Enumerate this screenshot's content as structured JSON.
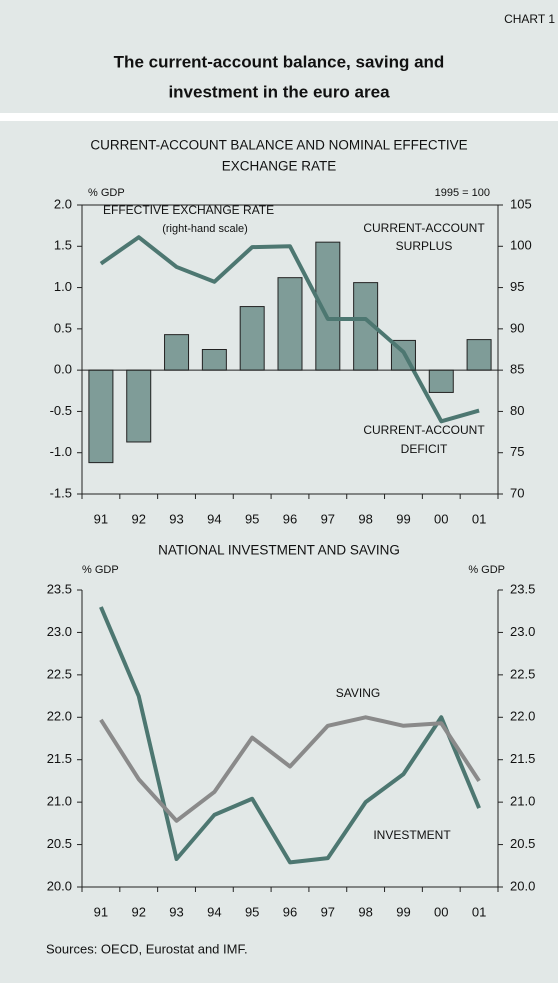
{
  "header": {
    "label": "CHART 1",
    "title_lines": [
      "The current-account balance, saving and",
      "investment in the euro area"
    ]
  },
  "chart_data": [
    {
      "type": "bar_line",
      "title_lines": [
        "CURRENT-ACCOUNT BALANCE AND NOMINAL EFFECTIVE",
        "EXCHANGE RATE"
      ],
      "y_label": "% GDP",
      "y2_label": "1995 = 100",
      "categories": [
        "91",
        "92",
        "93",
        "94",
        "95",
        "96",
        "97",
        "98",
        "99",
        "00",
        "01"
      ],
      "series": [
        {
          "type": "bar",
          "color": "#7f9c98",
          "values": [
            -1.12,
            -0.87,
            0.43,
            0.25,
            0.77,
            1.12,
            1.55,
            1.06,
            0.36,
            -0.27,
            0.37
          ]
        },
        {
          "type": "line",
          "axis": "y2",
          "color": "#4d7771",
          "values": [
            97.9,
            101.1,
            97.5,
            95.7,
            99.9,
            100.0,
            91.2,
            91.2,
            87.2,
            78.8,
            80.1
          ]
        }
      ],
      "annotations": [
        "EFFECTIVE EXCHANGE RATE",
        "(right-hand scale)",
        "CURRENT-ACCOUNT",
        "SURPLUS",
        "CURRENT-ACCOUNT",
        "DEFICIT"
      ],
      "ylim": [
        -1.5,
        2
      ],
      "yticks": [
        {
          "value": 2,
          "label": "2.0"
        },
        1.5,
        {
          "value": 1,
          "label": "1.0"
        },
        0.5,
        {
          "value": 0,
          "label": "0.0"
        },
        -0.5,
        {
          "value": -1,
          "label": "-1.0"
        },
        -1.5
      ],
      "y2lim": [
        70,
        105
      ],
      "y2ticks": [
        105,
        100,
        95,
        90,
        85,
        80,
        75,
        70
      ],
      "box": true
    },
    {
      "type": "line",
      "title_lines": [
        "NATIONAL INVESTMENT AND SAVING"
      ],
      "y_label": "% GDP",
      "y2_label": "% GDP",
      "categories": [
        "91",
        "92",
        "93",
        "94",
        "95",
        "96",
        "97",
        "98",
        "99",
        "00",
        "01"
      ],
      "series": [
        {
          "name": "INVESTMENT",
          "color": "#4d7771",
          "values": [
            23.3,
            22.25,
            20.33,
            20.85,
            21.04,
            20.29,
            20.34,
            21.0,
            21.33,
            22.0,
            20.93
          ]
        },
        {
          "name": "SAVING",
          "color": "#8a8a8a",
          "values": [
            21.97,
            21.27,
            20.78,
            21.12,
            21.76,
            21.42,
            21.9,
            22.0,
            21.9,
            21.93,
            21.25
          ]
        }
      ],
      "ylim": [
        20,
        23.5
      ],
      "yticks": [
        23.5,
        {
          "value": 23,
          "label": "23.0"
        },
        22.5,
        {
          "value": 22,
          "label": "22.0"
        },
        21.5,
        {
          "value": 21,
          "label": "21.0"
        },
        20.5,
        {
          "value": 20,
          "label": "20.0"
        }
      ],
      "box": false
    }
  ],
  "footnote": "Sources: OECD, Eurostat and IMF."
}
